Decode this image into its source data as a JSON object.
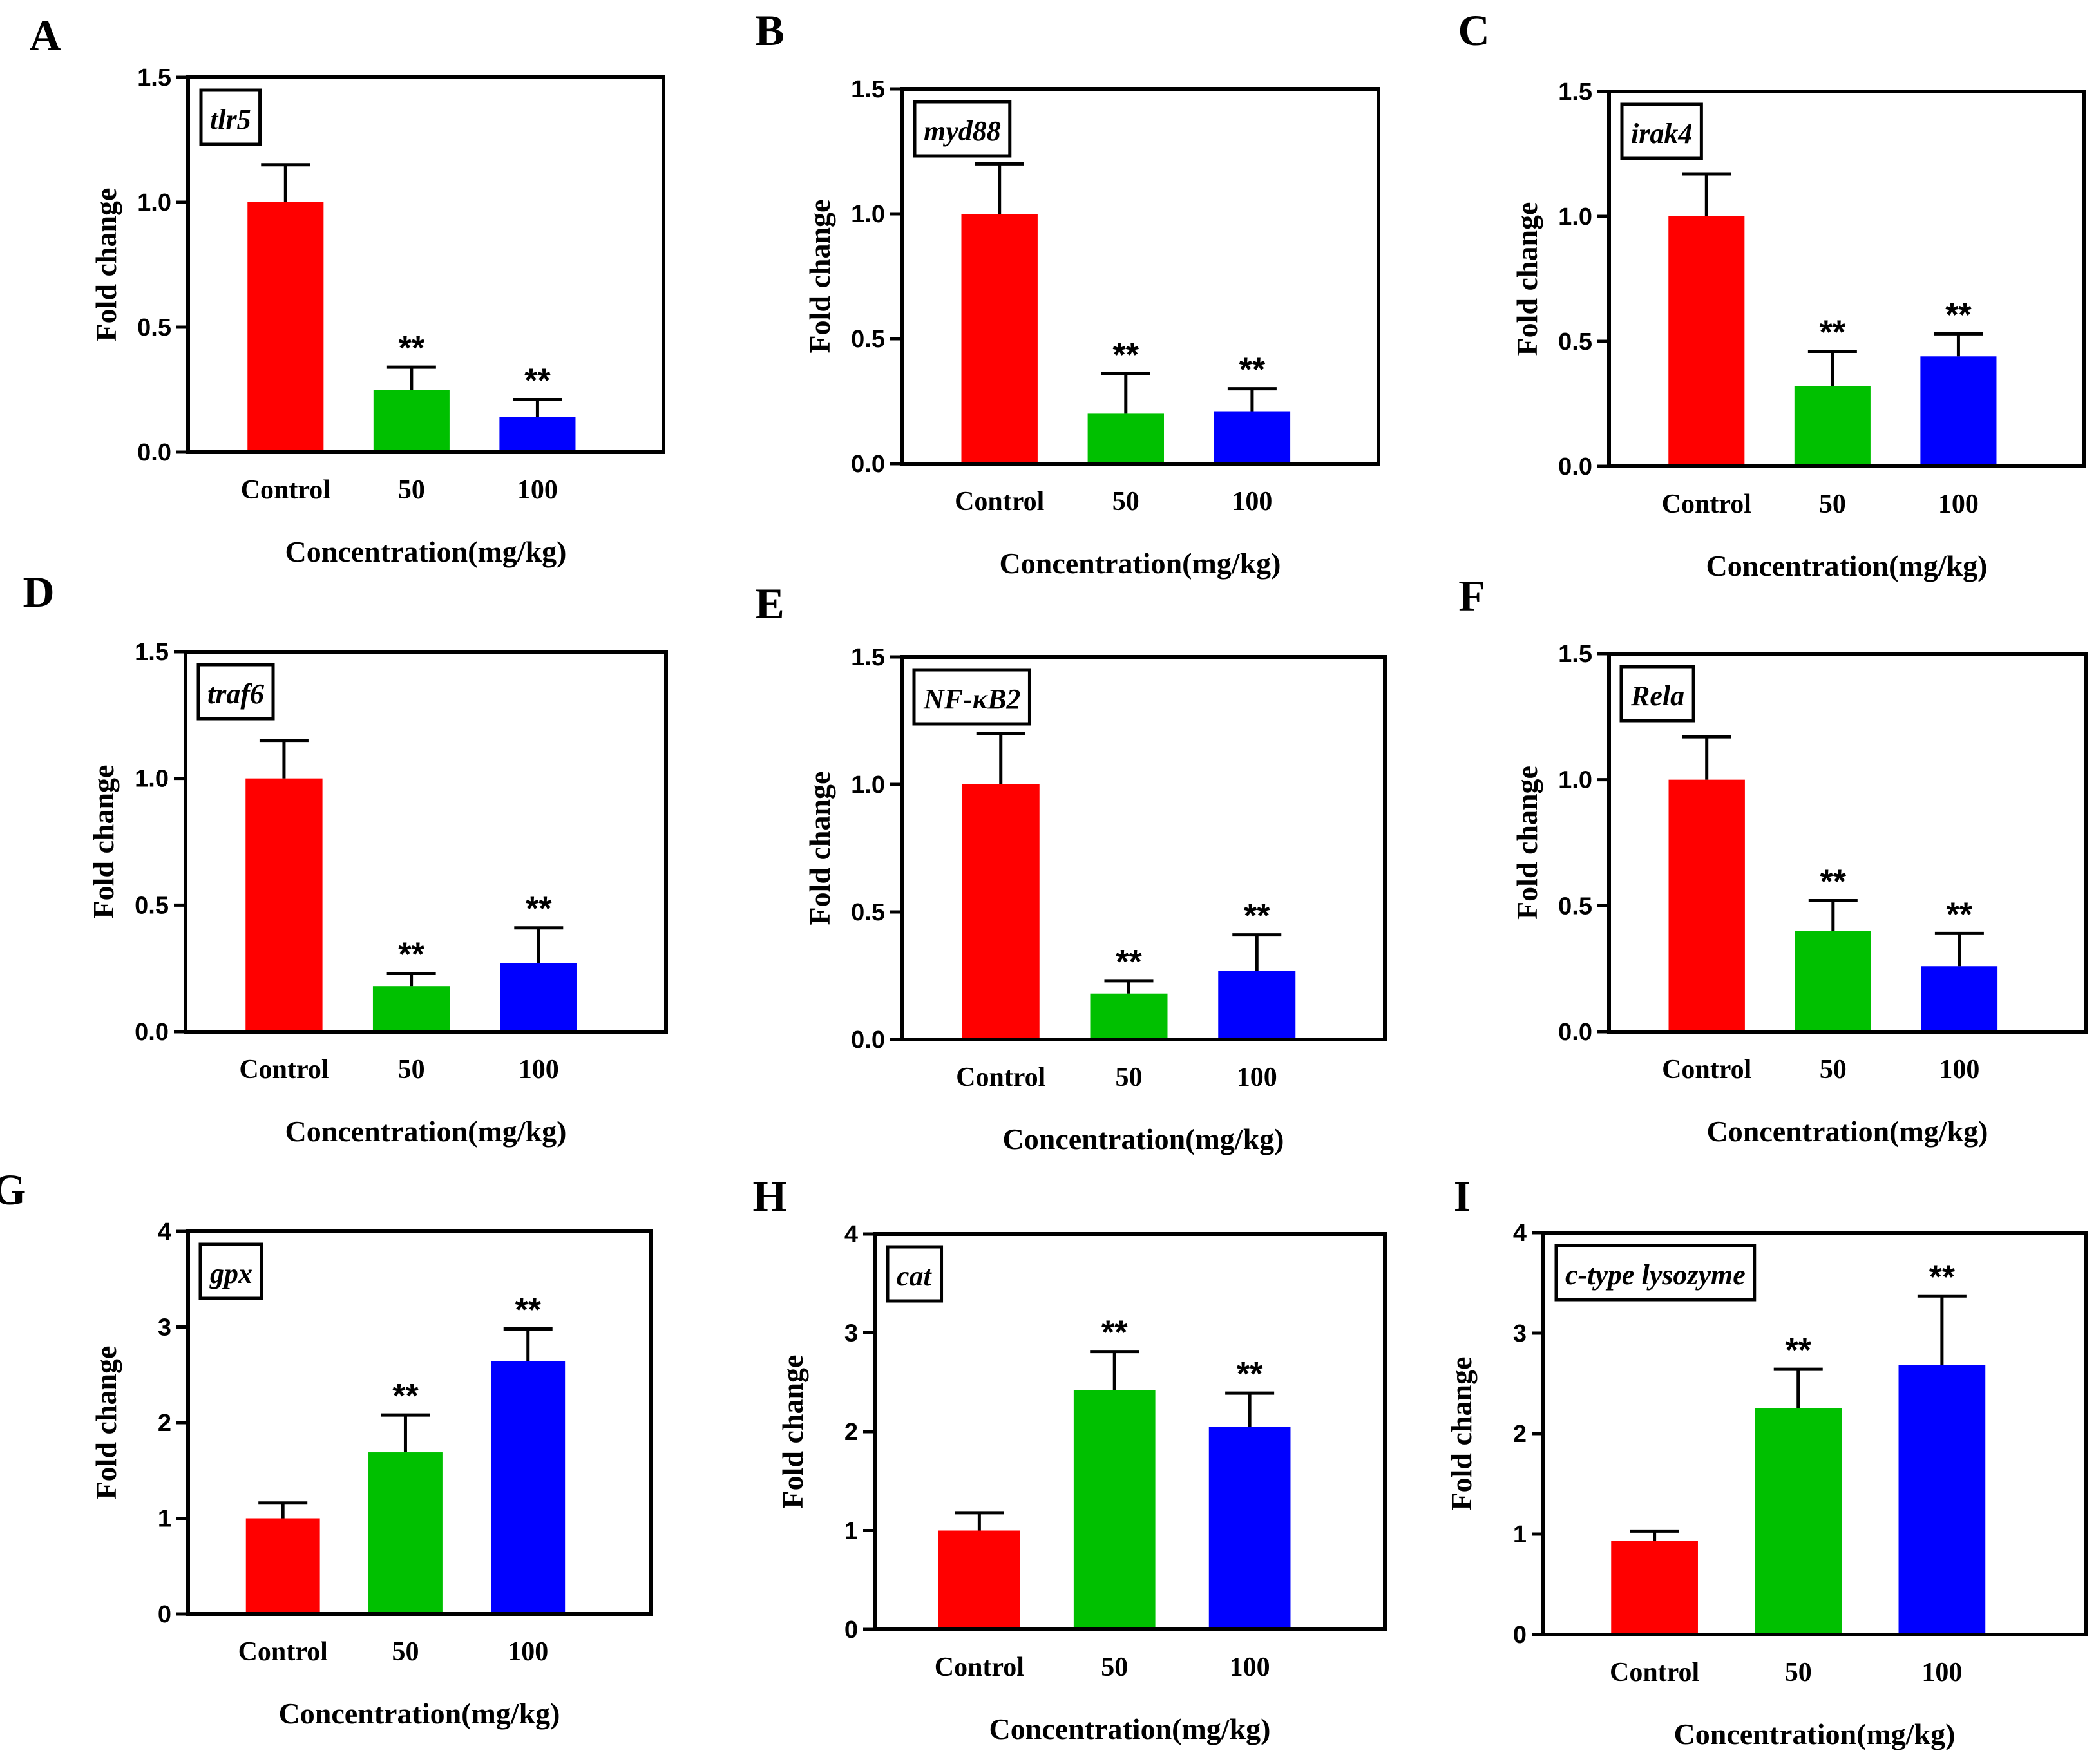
{
  "figure": {
    "x_axis_title": "Concentration(mg/kg)",
    "y_axis_title": "Fold change",
    "bar_colors": [
      "#ff0000",
      "#00c000",
      "#0000ff"
    ]
  },
  "chart_data": [
    {
      "panel": "A",
      "gene": "tlr5",
      "type": "bar",
      "categories": [
        "Control",
        "50",
        "100"
      ],
      "values": [
        1.0,
        0.25,
        0.14
      ],
      "errors": [
        0.15,
        0.09,
        0.07
      ],
      "significance": [
        "",
        "**",
        "**"
      ],
      "ylim": [
        0,
        1.5
      ],
      "yticks": [
        "0.0",
        "0.5",
        "1.0",
        "1.5"
      ],
      "xlabel": "Concentration(mg/kg)",
      "ylabel": "Fold change"
    },
    {
      "panel": "B",
      "gene": "myd88",
      "type": "bar",
      "categories": [
        "Control",
        "50",
        "100"
      ],
      "values": [
        1.0,
        0.2,
        0.21
      ],
      "errors": [
        0.2,
        0.16,
        0.09
      ],
      "significance": [
        "",
        "**",
        "**"
      ],
      "ylim": [
        0,
        1.5
      ],
      "yticks": [
        "0.0",
        "0.5",
        "1.0",
        "1.5"
      ],
      "xlabel": "Concentration(mg/kg)",
      "ylabel": "Fold change"
    },
    {
      "panel": "C",
      "gene": "irak4",
      "type": "bar",
      "categories": [
        "Control",
        "50",
        "100"
      ],
      "values": [
        1.0,
        0.32,
        0.44
      ],
      "errors": [
        0.17,
        0.14,
        0.09
      ],
      "significance": [
        "",
        "**",
        "**"
      ],
      "ylim": [
        0,
        1.5
      ],
      "yticks": [
        "0.0",
        "0.5",
        "1.0",
        "1.5"
      ],
      "xlabel": "Concentration(mg/kg)",
      "ylabel": "Fold change"
    },
    {
      "panel": "D",
      "gene": "traf6",
      "type": "bar",
      "categories": [
        "Control",
        "50",
        "100"
      ],
      "values": [
        1.0,
        0.18,
        0.27
      ],
      "errors": [
        0.15,
        0.05,
        0.14
      ],
      "significance": [
        "",
        "**",
        "**"
      ],
      "ylim": [
        0,
        1.5
      ],
      "yticks": [
        "0.0",
        "0.5",
        "1.0",
        "1.5"
      ],
      "xlabel": "Concentration(mg/kg)",
      "ylabel": "Fold change"
    },
    {
      "panel": "E",
      "gene": "NF-κB2",
      "type": "bar",
      "categories": [
        "Control",
        "50",
        "100"
      ],
      "values": [
        1.0,
        0.18,
        0.27
      ],
      "errors": [
        0.2,
        0.05,
        0.14
      ],
      "significance": [
        "",
        "**",
        "**"
      ],
      "ylim": [
        0,
        1.5
      ],
      "yticks": [
        "0.0",
        "0.5",
        "1.0",
        "1.5"
      ],
      "xlabel": "Concentration(mg/kg)",
      "ylabel": "Fold change"
    },
    {
      "panel": "F",
      "gene": "Rela",
      "type": "bar",
      "categories": [
        "Control",
        "50",
        "100"
      ],
      "values": [
        1.0,
        0.4,
        0.26
      ],
      "errors": [
        0.17,
        0.12,
        0.13
      ],
      "significance": [
        "",
        "**",
        "**"
      ],
      "ylim": [
        0,
        1.5
      ],
      "yticks": [
        "0.0",
        "0.5",
        "1.0",
        "1.5"
      ],
      "xlabel": "Concentration(mg/kg)",
      "ylabel": "Fold change"
    },
    {
      "panel": "G",
      "gene": "gpx",
      "type": "bar",
      "categories": [
        "Control",
        "50",
        "100"
      ],
      "values": [
        1.0,
        1.69,
        2.64
      ],
      "errors": [
        0.16,
        0.39,
        0.34
      ],
      "significance": [
        "",
        "**",
        "**"
      ],
      "ylim": [
        0,
        4
      ],
      "yticks": [
        "0",
        "1",
        "2",
        "3",
        "4"
      ],
      "xlabel": "Concentration(mg/kg)",
      "ylabel": "Fold change"
    },
    {
      "panel": "H",
      "gene": "cat",
      "type": "bar",
      "categories": [
        "Control",
        "50",
        "100"
      ],
      "values": [
        1.0,
        2.42,
        2.05
      ],
      "errors": [
        0.18,
        0.39,
        0.34
      ],
      "significance": [
        "",
        "**",
        "**"
      ],
      "ylim": [
        0,
        4
      ],
      "yticks": [
        "0",
        "1",
        "2",
        "3",
        "4"
      ],
      "xlabel": "Concentration(mg/kg)",
      "ylabel": "Fold change"
    },
    {
      "panel": "I",
      "gene": "c-type lysozyme",
      "type": "bar",
      "categories": [
        "Control",
        "50",
        "100"
      ],
      "values": [
        0.93,
        2.25,
        2.68
      ],
      "errors": [
        0.1,
        0.39,
        0.69
      ],
      "significance": [
        "",
        "**",
        "**"
      ],
      "ylim": [
        0,
        4
      ],
      "yticks": [
        "0",
        "1",
        "2",
        "3",
        "4"
      ],
      "xlabel": "Concentration(mg/kg)",
      "ylabel": "Fold change"
    }
  ]
}
